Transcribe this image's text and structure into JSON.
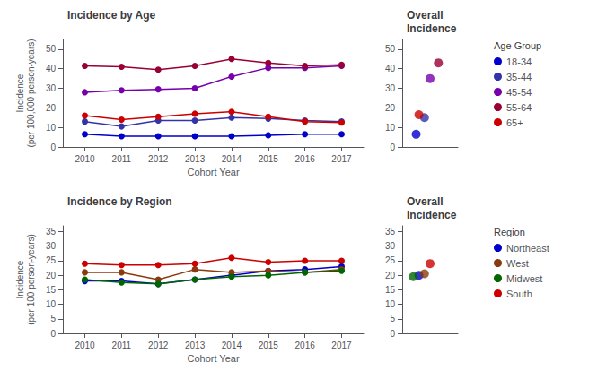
{
  "chart_data": [
    {
      "type": "line",
      "title": "Incidence by Age",
      "xlabel": "Cohort Year",
      "ylabel": "Incidence\n(per 100,000 person-years)",
      "x": [
        2010,
        2011,
        2012,
        2013,
        2014,
        2015,
        2016,
        2017
      ],
      "xlim": [
        2009.4,
        2017.6
      ],
      "xticks": [
        2010,
        2011,
        2012,
        2013,
        2014,
        2015,
        2016,
        2017
      ],
      "ylim": [
        0,
        55
      ],
      "yticks": [
        0,
        10,
        20,
        30,
        40,
        50
      ],
      "grid": false,
      "marker": "circle",
      "legend": "right",
      "legend_title": "Age Group",
      "series": [
        {
          "name": "18-34",
          "color": "#0000CC",
          "values": [
            6.5,
            5.5,
            5.5,
            5.5,
            5.5,
            6.0,
            6.5,
            6.5
          ]
        },
        {
          "name": "35-44",
          "color": "#3333AA",
          "values": [
            13.0,
            10.5,
            13.5,
            13.5,
            15.0,
            14.5,
            13.5,
            13.0
          ]
        },
        {
          "name": "45-54",
          "color": "#7700AA",
          "values": [
            28.0,
            29.0,
            29.5,
            30.0,
            36.0,
            40.5,
            40.5,
            41.5
          ]
        },
        {
          "name": "55-64",
          "color": "#990033",
          "values": [
            41.5,
            41.0,
            39.5,
            41.5,
            45.0,
            43.0,
            41.5,
            42.0
          ]
        },
        {
          "name": "65+",
          "color": "#CC0000",
          "values": [
            16.0,
            14.0,
            15.5,
            17.0,
            18.0,
            15.5,
            13.0,
            12.5
          ]
        }
      ]
    },
    {
      "type": "scatter",
      "title": "Overall\nIncidence",
      "xlim": [
        0.5,
        2.5
      ],
      "xticks": [],
      "ylim": [
        0,
        55
      ],
      "yticks": [
        0,
        10,
        20,
        30,
        40,
        50
      ],
      "grid": false,
      "tick_labels": "y",
      "marker": "circle",
      "series": [
        {
          "name": "18-34",
          "color": "#0000CC",
          "x": [
            1.0
          ],
          "values": [
            6.5
          ]
        },
        {
          "name": "35-44",
          "color": "#3333AA",
          "x": [
            1.3
          ],
          "values": [
            15.0
          ]
        },
        {
          "name": "45-54",
          "color": "#7700AA",
          "x": [
            1.5
          ],
          "values": [
            35.0
          ]
        },
        {
          "name": "55-64",
          "color": "#990033",
          "x": [
            1.8
          ],
          "values": [
            43.0
          ]
        },
        {
          "name": "65+",
          "color": "#CC0000",
          "x": [
            1.1
          ],
          "values": [
            16.5
          ]
        }
      ]
    },
    {
      "type": "line",
      "title": "Incidence by Region",
      "xlabel": "Cohort Year",
      "ylabel": "Incidence\n(per 100 person-years)",
      "x": [
        2010,
        2011,
        2012,
        2013,
        2014,
        2015,
        2016,
        2017
      ],
      "xlim": [
        2009.4,
        2017.6
      ],
      "xticks": [
        2010,
        2011,
        2012,
        2013,
        2014,
        2015,
        2016,
        2017
      ],
      "ylim": [
        0,
        37
      ],
      "yticks": [
        0,
        5,
        10,
        15,
        20,
        25,
        30,
        35
      ],
      "grid": false,
      "marker": "circle",
      "legend": "right",
      "legend_title": "Region",
      "series": [
        {
          "name": "Northeast",
          "color": "#0000CC",
          "values": [
            18.0,
            18.0,
            17.0,
            18.5,
            20.0,
            21.5,
            22.0,
            23.0
          ]
        },
        {
          "name": "West",
          "color": "#8B3A0F",
          "values": [
            21.0,
            21.0,
            18.5,
            22.0,
            21.0,
            21.5,
            21.0,
            22.0
          ]
        },
        {
          "name": "Midwest",
          "color": "#006600",
          "values": [
            18.5,
            17.5,
            17.0,
            18.5,
            19.5,
            20.0,
            21.0,
            21.5
          ]
        },
        {
          "name": "South",
          "color": "#CC0000",
          "values": [
            24.0,
            23.5,
            23.5,
            24.0,
            26.0,
            24.5,
            25.0,
            25.0
          ]
        }
      ]
    },
    {
      "type": "scatter",
      "title": "Overall\nIncidence",
      "xlim": [
        0.5,
        2.5
      ],
      "xticks": [],
      "ylim": [
        0,
        37
      ],
      "yticks": [
        0,
        5,
        10,
        15,
        20,
        25,
        30,
        35
      ],
      "grid": false,
      "tick_labels": "y",
      "marker": "circle",
      "series": [
        {
          "name": "Northeast",
          "color": "#0000CC",
          "x": [
            1.1
          ],
          "values": [
            20.0
          ]
        },
        {
          "name": "West",
          "color": "#8B3A0F",
          "x": [
            1.3
          ],
          "values": [
            20.5
          ]
        },
        {
          "name": "Midwest",
          "color": "#006600",
          "x": [
            0.9
          ],
          "values": [
            19.5
          ]
        },
        {
          "name": "South",
          "color": "#CC0000",
          "x": [
            1.5
          ],
          "values": [
            24.0
          ]
        }
      ]
    }
  ]
}
